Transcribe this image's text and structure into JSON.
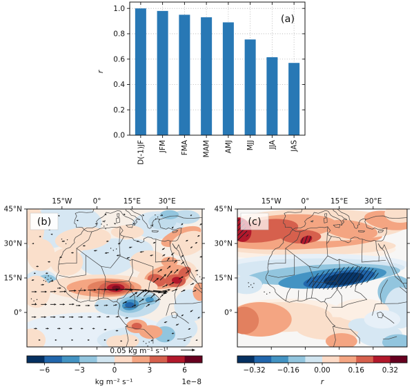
{
  "figure": {
    "background": "#ffffff",
    "description": "Three-panel climate figure: bar chart of correlations and two filled-contour maps of Africa with colorbars"
  },
  "chart_data": [
    {
      "type": "bar",
      "panel": "a",
      "annotation": "(a)",
      "categories": [
        "D(-1)JF",
        "JFM",
        "FMA",
        "MAM",
        "AMJ",
        "MJJ",
        "JJA",
        "JAS"
      ],
      "values": [
        1.0,
        0.98,
        0.95,
        0.93,
        0.89,
        0.755,
        0.615,
        0.57
      ],
      "title": "",
      "xlabel": "",
      "ylabel": "r",
      "ylim": [
        0.0,
        1.05
      ],
      "yticks": [
        0.0,
        0.2,
        0.4,
        0.6,
        0.8,
        1.0
      ],
      "bar_color": "#2878b5",
      "grid": "dotted, both axes",
      "legend": "none"
    },
    {
      "type": "heatmap",
      "panel": "b",
      "annotation": "(b)",
      "description": "Filled-contour anomaly map over Africa/Mediterranean with moisture-flux vector arrows",
      "lon_range": [
        -30,
        45
      ],
      "lat_range": [
        -15,
        45
      ],
      "x_ticks": [
        {
          "label": "15°W",
          "lon": -15
        },
        {
          "label": "0°",
          "lon": 0
        },
        {
          "label": "15°E",
          "lon": 15
        },
        {
          "label": "30°E",
          "lon": 30
        }
      ],
      "y_ticks": [
        {
          "label": "45°N",
          "lat": 45
        },
        {
          "label": "30°N",
          "lat": 30
        },
        {
          "label": "15°N",
          "lat": 15
        },
        {
          "label": "0°",
          "lat": 0
        }
      ],
      "quiver_key": "0.05 kg m⁻¹ s⁻¹",
      "colorbar": {
        "ticks": [
          {
            "label": "−6",
            "value": -6
          },
          {
            "label": "−3",
            "value": -3
          },
          {
            "label": "0",
            "value": 0
          },
          {
            "label": "3",
            "value": 3
          },
          {
            "label": "6",
            "value": 6
          }
        ],
        "range": [
          -7.5,
          7.5
        ],
        "label": "kg m⁻² s⁻¹",
        "scale": "1e−8",
        "colors": [
          "#053061",
          "#2166ac",
          "#4393c3",
          "#92c5de",
          "#d1e5f0",
          "#fddbc7",
          "#f4a582",
          "#d6604d",
          "#b2182b",
          "#67001f"
        ]
      }
    },
    {
      "type": "heatmap",
      "panel": "c",
      "annotation": "(c)",
      "description": "Correlation map over Africa/Mediterranean, hatched where significant",
      "lon_range": [
        -30,
        45
      ],
      "lat_range": [
        -15,
        45
      ],
      "x_ticks": [
        {
          "label": "15°W",
          "lon": -15
        },
        {
          "label": "0°",
          "lon": 0
        },
        {
          "label": "15°E",
          "lon": 15
        },
        {
          "label": "30°E",
          "lon": 30
        }
      ],
      "y_ticks": [
        {
          "label": "45°N",
          "lat": 45
        },
        {
          "label": "30°N",
          "lat": 30
        },
        {
          "label": "15°N",
          "lat": 15
        },
        {
          "label": "0°",
          "lat": 0
        }
      ],
      "colorbar": {
        "ticks": [
          {
            "label": "−0.32",
            "value": -0.32
          },
          {
            "label": "−0.16",
            "value": -0.16
          },
          {
            "label": "0.00",
            "value": 0
          },
          {
            "label": "0.16",
            "value": 0.16
          },
          {
            "label": "0.32",
            "value": 0.32
          }
        ],
        "range": [
          -0.4,
          0.4
        ],
        "label": "r",
        "colors": [
          "#053061",
          "#2166ac",
          "#4393c3",
          "#92c5de",
          "#d1e5f0",
          "#fddbc7",
          "#f4a582",
          "#d6604d",
          "#b2182b",
          "#67001f"
        ]
      }
    }
  ]
}
